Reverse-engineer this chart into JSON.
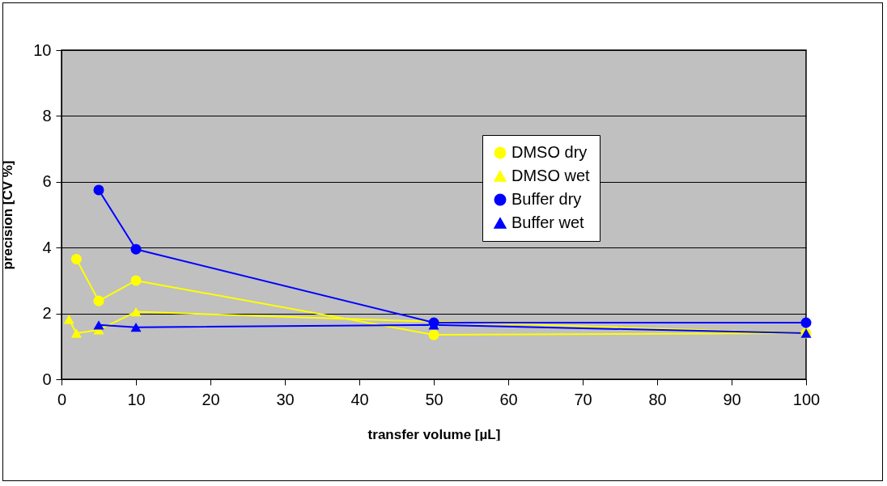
{
  "chart_data": {
    "type": "line",
    "xlabel": "transfer volume [µL]",
    "ylabel": "precision [CV %]",
    "xlim": [
      0,
      100
    ],
    "xticks": [
      0,
      10,
      20,
      30,
      40,
      50,
      60,
      70,
      80,
      90,
      100
    ],
    "ylim": [
      0,
      10
    ],
    "yticks": [
      0,
      2,
      4,
      6,
      8,
      10
    ],
    "grid": "y",
    "legend": "right",
    "series": [
      {
        "name": "DMSO dry",
        "color": "#ffff00",
        "marker": "circle",
        "x": [
          2,
          5,
          10,
          50,
          100
        ],
        "values": [
          3.65,
          2.38,
          3.0,
          1.35,
          1.4
        ]
      },
      {
        "name": "DMSO wet",
        "color": "#ffff00",
        "marker": "triangle",
        "x": [
          1,
          2,
          5,
          10,
          50,
          100
        ],
        "values": [
          1.82,
          1.4,
          1.5,
          2.05,
          1.75,
          1.4
        ]
      },
      {
        "name": "Buffer dry",
        "color": "#0000ff",
        "marker": "circle",
        "x": [
          5,
          10,
          50,
          100
        ],
        "values": [
          5.75,
          3.95,
          1.72,
          1.72
        ]
      },
      {
        "name": "Buffer wet",
        "color": "#0000ff",
        "marker": "triangle",
        "x": [
          5,
          10,
          50,
          100
        ],
        "values": [
          1.65,
          1.58,
          1.65,
          1.4
        ]
      }
    ]
  }
}
